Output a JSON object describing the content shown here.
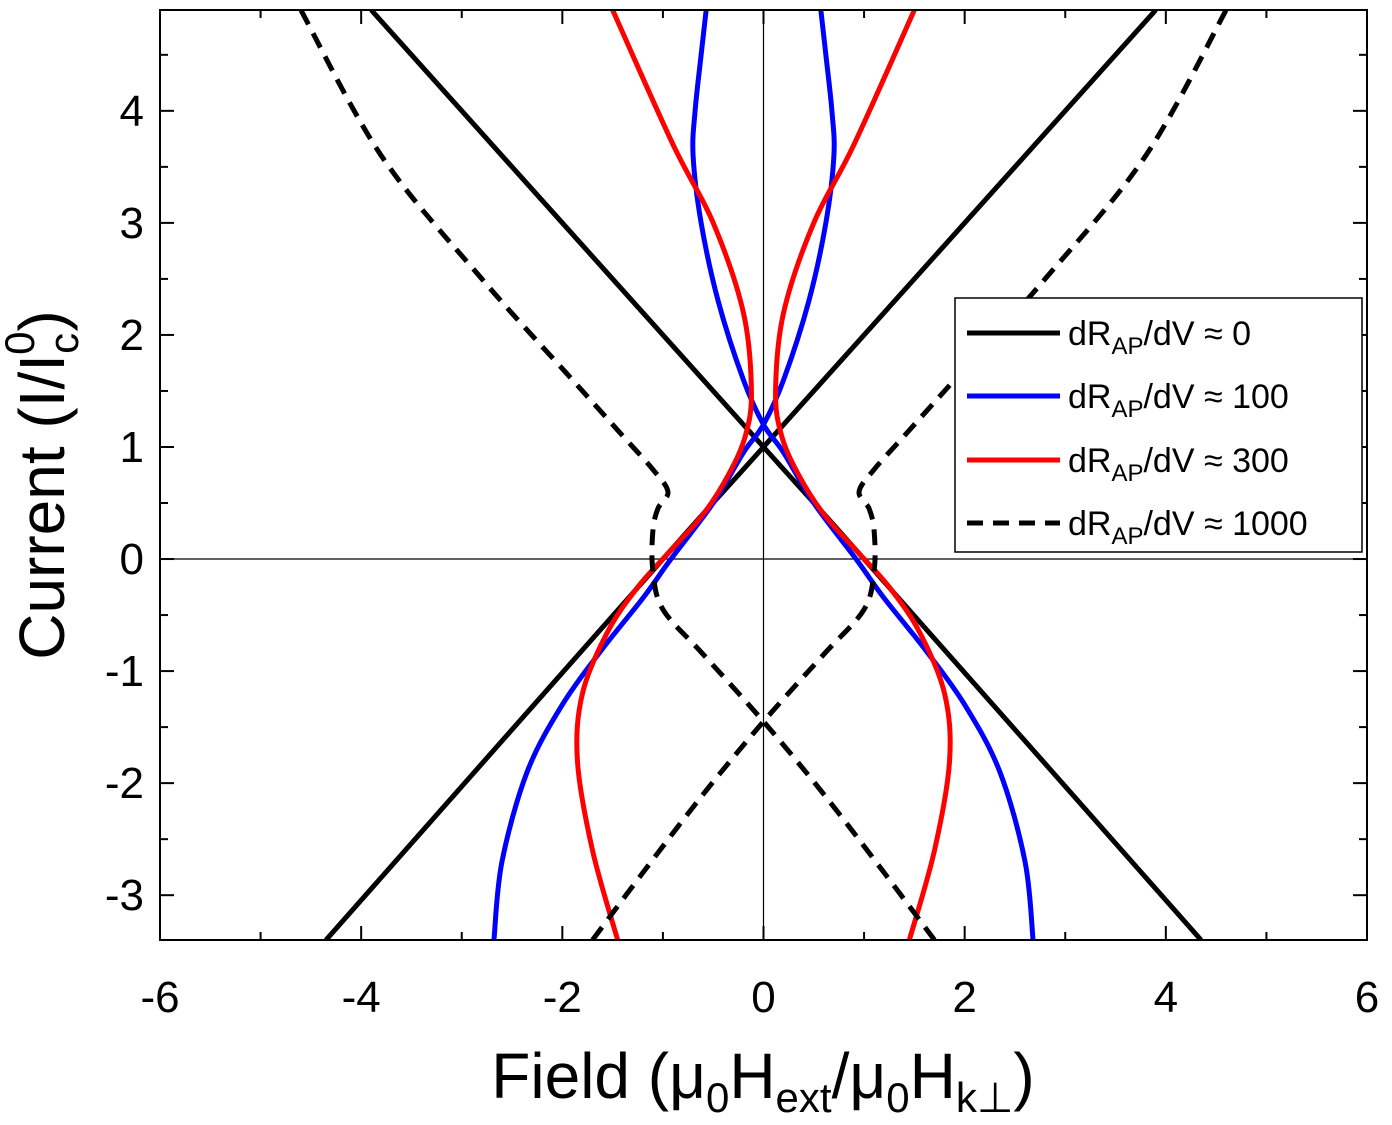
{
  "chart_data": {
    "type": "line",
    "title": "",
    "xlabel": {
      "base": "Field (μ",
      "sub1": "0",
      "mid1": "H",
      "sub2": "ext",
      "mid2": "/μ",
      "sub3": "0",
      "mid3": "H",
      "sub4": "k⊥",
      "end": ")"
    },
    "ylabel": {
      "base": "Current (I/I",
      "sub": "c",
      "sup": "0",
      "end": ")"
    },
    "xlim": [
      -6,
      6
    ],
    "ylim": [
      -3.4,
      4.9
    ],
    "xticks": [
      -6,
      -4,
      -2,
      0,
      2,
      4,
      6
    ],
    "xtick_labels": [
      "-6",
      "-4",
      "-2",
      "0",
      "2",
      "4",
      "6"
    ],
    "yticks": [
      -3,
      -2,
      -1,
      0,
      1,
      2,
      3,
      4
    ],
    "ytick_labels": [
      "-3",
      "-2",
      "-1",
      "0",
      "1",
      "2",
      "3",
      "4"
    ],
    "grid": false,
    "legend_position": "right",
    "series": [
      {
        "name": {
          "pre": "dR",
          "sub": "AP",
          "post": "/dV ≈ 0"
        },
        "color": "#000000",
        "dash": "solid",
        "branches": [
          {
            "x": [
              -4.35,
              -0.95,
              0.0,
              3.9
            ],
            "y": [
              -3.4,
              0.05,
              1.0,
              4.9
            ]
          },
          {
            "x": [
              -3.9,
              0.0,
              0.95,
              4.35
            ],
            "y": [
              4.9,
              1.0,
              0.05,
              -3.4
            ]
          }
        ]
      },
      {
        "name": {
          "pre": "dR",
          "sub": "AP",
          "post": "/dV ≈ 100"
        },
        "color": "#0000ff",
        "dash": "solid",
        "branches": [
          {
            "x": [
              -2.68,
              -2.6,
              -2.35,
              -2.0,
              -1.6,
              -1.2,
              -0.92,
              -0.5,
              -0.2,
              0.0,
              0.2,
              0.45,
              0.62,
              0.7,
              0.68,
              0.62,
              0.57
            ],
            "y": [
              -3.4,
              -2.7,
              -1.9,
              -1.3,
              -0.8,
              -0.35,
              0.0,
              0.5,
              0.95,
              1.2,
              1.6,
              2.3,
              3.0,
              3.6,
              4.0,
              4.5,
              4.9
            ]
          },
          {
            "x": [
              2.68,
              2.6,
              2.35,
              2.0,
              1.6,
              1.2,
              0.92,
              0.5,
              0.2,
              0.0,
              -0.2,
              -0.45,
              -0.62,
              -0.7,
              -0.68,
              -0.62,
              -0.57
            ],
            "y": [
              -3.4,
              -2.7,
              -1.9,
              -1.3,
              -0.8,
              -0.35,
              0.0,
              0.5,
              0.95,
              1.2,
              1.6,
              2.3,
              3.0,
              3.6,
              4.0,
              4.5,
              4.9
            ]
          }
        ]
      },
      {
        "name": {
          "pre": "dR",
          "sub": "AP",
          "post": "/dV ≈ 300"
        },
        "color": "#ff0000",
        "dash": "solid",
        "branches": [
          {
            "x": [
              -1.45,
              -1.7,
              -1.85,
              -1.8,
              -1.55,
              -1.25,
              -0.95,
              -0.6,
              -0.35,
              -0.18,
              -0.12,
              -0.2,
              -0.5,
              -0.9,
              -1.5
            ],
            "y": [
              -3.4,
              -2.6,
              -1.8,
              -1.2,
              -0.65,
              -0.25,
              0.05,
              0.4,
              0.75,
              1.1,
              1.5,
              2.2,
              3.0,
              3.7,
              4.9
            ]
          },
          {
            "x": [
              1.45,
              1.7,
              1.85,
              1.8,
              1.55,
              1.25,
              0.95,
              0.6,
              0.35,
              0.18,
              0.12,
              0.2,
              0.5,
              0.9,
              1.5
            ],
            "y": [
              -3.4,
              -2.6,
              -1.8,
              -1.2,
              -0.65,
              -0.25,
              0.05,
              0.4,
              0.75,
              1.1,
              1.5,
              2.2,
              3.0,
              3.7,
              4.9
            ]
          }
        ]
      },
      {
        "name": {
          "pre": "dR",
          "sub": "AP",
          "post": "/dV ≈ 1000"
        },
        "color": "#000000",
        "dash": "dashed",
        "branches": [
          {
            "x": [
              -1.7,
              -1.2,
              -0.6,
              0.0,
              0.6,
              1.0,
              1.1,
              1.1,
              1.05,
              0.95,
              1.1,
              1.4,
              1.9,
              2.8,
              3.8,
              4.6
            ],
            "y": [
              -3.4,
              -2.8,
              -2.1,
              -1.45,
              -0.85,
              -0.45,
              -0.1,
              0.25,
              0.45,
              0.6,
              0.8,
              1.1,
              1.6,
              2.5,
              3.6,
              4.9
            ]
          },
          {
            "x": [
              1.7,
              1.2,
              0.6,
              0.0,
              -0.6,
              -1.0,
              -1.1,
              -1.1,
              -1.05,
              -0.95,
              -1.1,
              -1.4,
              -1.9,
              -2.8,
              -3.8,
              -4.6
            ],
            "y": [
              -3.4,
              -2.8,
              -2.1,
              -1.45,
              -0.85,
              -0.45,
              -0.1,
              0.25,
              0.45,
              0.6,
              0.8,
              1.1,
              1.6,
              2.5,
              3.6,
              4.9
            ]
          }
        ]
      }
    ]
  }
}
